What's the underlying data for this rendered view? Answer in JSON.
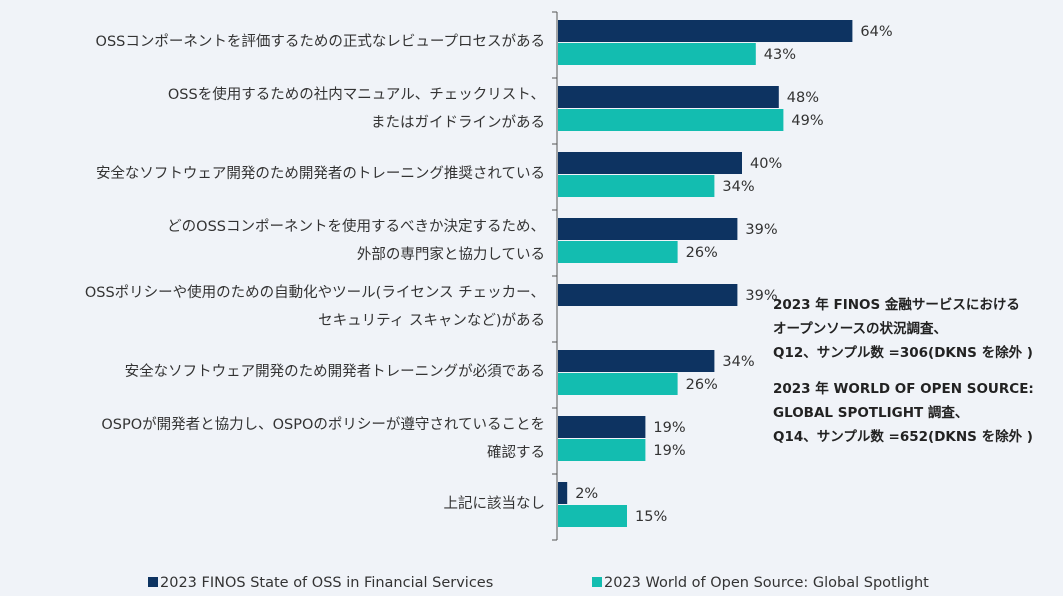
{
  "chart_data": {
    "type": "bar",
    "orientation": "horizontal",
    "categories": [
      [
        "OSSコンポーネントを評価するための正式なレビュープロセスがある"
      ],
      [
        "OSSを使用するための社内マニュアル、チェックリスト、",
        "またはガイドラインがある"
      ],
      [
        "安全なソフトウェア開発のため開発者のトレーニング推奨されている"
      ],
      [
        "どのOSSコンポーネントを使用するべきか決定するため、",
        "外部の専門家と協力している"
      ],
      [
        "OSSポリシーや使用のための自動化やツール(ライセンス チェッカー、",
        "セキュリティ スキャンなど)がある"
      ],
      [
        "安全なソフトウェア開発のため開発者トレーニングが必須である"
      ],
      [
        "OSPOが開発者と協力し、OSPOのポリシーが遵守されていることを",
        "確認する"
      ],
      [
        "上記に該当なし"
      ]
    ],
    "series": [
      {
        "name": "2023 FINOS State of OSS in Financial Services",
        "color": "#0d3361",
        "values": [
          64,
          48,
          40,
          39,
          39,
          34,
          19,
          2
        ],
        "value_labels": [
          "64%",
          "48%",
          "40%",
          "39%",
          "39%",
          "34%",
          "19%",
          "2%"
        ]
      },
      {
        "name": "2023 World of Open Source: Global Spotlight",
        "color": "#13bdb0",
        "values": [
          43,
          49,
          34,
          26,
          null,
          26,
          19,
          15
        ],
        "value_labels": [
          "43%",
          "49%",
          "34%",
          "26%",
          null,
          "26%",
          "19%",
          "15%"
        ]
      }
    ],
    "annotations": [
      [
        "2023 年 FINOS 金融サービスにおける",
        "オープンソースの状況調査、",
        "Q12、サンプル数 =306(DKNS を除外 )"
      ],
      [
        "2023 年 WORLD OF OPEN SOURCE:",
        "GLOBAL SPOTLIGHT 調査、",
        "Q14、サンプル数 =652(DKNS を除外 )"
      ]
    ],
    "legend": "bottom"
  }
}
